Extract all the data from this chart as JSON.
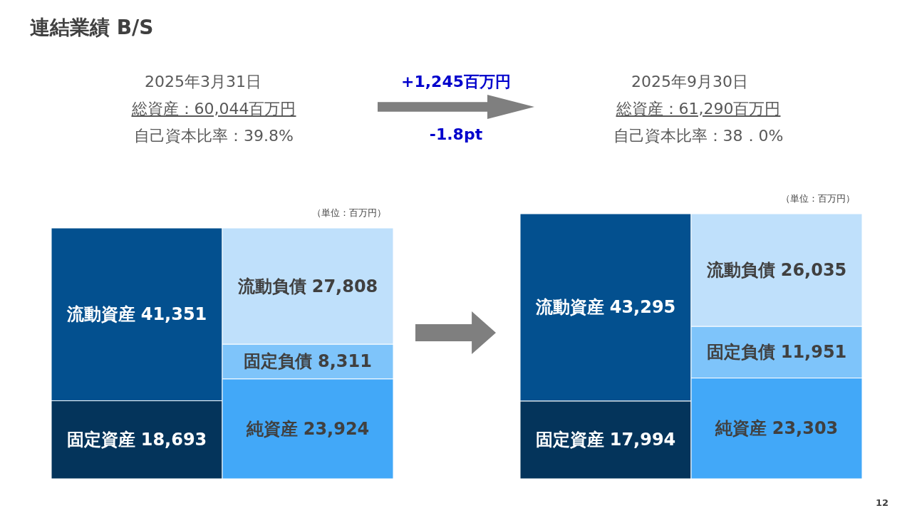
{
  "chart_data": [
    {
      "type": "other",
      "title": "連結業績 B/S",
      "annotations": [
        "2025年3月31日",
        "総資産：60,044百万円",
        "自己資本比率：39.8%",
        "+1,245百万円",
        "-1.8pt",
        "2025年9月30日",
        "総資産：61,290百万円",
        "自己資本比率：38．0%",
        "12"
      ]
    },
    {
      "type": "bar",
      "stacked": true,
      "categories": [
        null,
        null
      ],
      "annotations": [
        "（単位：百万円）"
      ],
      "series": [
        {
          "name": "固定資産",
          "color": "#04345b",
          "values": [
            18693,
            null
          ],
          "value_labels": [
            "18,693",
            null
          ]
        },
        {
          "name": "流動資産",
          "color": "#03508f",
          "values": [
            41351,
            null
          ],
          "value_labels": [
            "41,351",
            null
          ]
        },
        {
          "name": "純資産",
          "color": "#42a8f8",
          "values": [
            null,
            23924
          ],
          "value_labels": [
            null,
            "23,924"
          ]
        },
        {
          "name": "固定負債",
          "color": "#7ec4fa",
          "values": [
            null,
            8311
          ],
          "value_labels": [
            null,
            "8,311"
          ]
        },
        {
          "name": "流動負債",
          "color": "#bfe0fb",
          "values": [
            null,
            27808
          ],
          "value_labels": [
            null,
            "27,808"
          ]
        }
      ]
    },
    {
      "type": "bar",
      "stacked": true,
      "categories": [
        null,
        null
      ],
      "annotations": [
        "（単位：百万円）"
      ],
      "series": [
        {
          "name": "固定資産",
          "color": "#04345b",
          "values": [
            17994,
            null
          ],
          "value_labels": [
            "17,994",
            null
          ]
        },
        {
          "name": "流動資産",
          "color": "#03508f",
          "values": [
            43295,
            null
          ],
          "value_labels": [
            "43,295",
            null
          ]
        },
        {
          "name": "純資産",
          "color": "#42a8f8",
          "values": [
            null,
            23303
          ],
          "value_labels": [
            null,
            "23,303"
          ]
        },
        {
          "name": "固定負債",
          "color": "#7ec4fa",
          "values": [
            null,
            11951
          ],
          "value_labels": [
            null,
            "11,951"
          ]
        },
        {
          "name": "流動負債",
          "color": "#bfe0fb",
          "values": [
            null,
            26035
          ],
          "value_labels": [
            null,
            "26,035"
          ]
        }
      ]
    }
  ]
}
